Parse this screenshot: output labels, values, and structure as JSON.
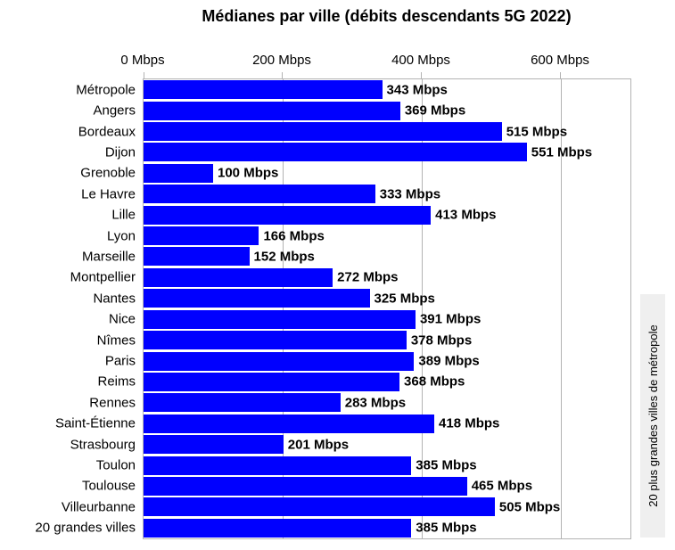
{
  "chart_data": {
    "type": "bar",
    "orientation": "horizontal",
    "title": "Médianes par ville (débits descendants 5G 2022)",
    "categories": [
      "Métropole",
      "Angers",
      "Bordeaux",
      "Dijon",
      "Grenoble",
      "Le Havre",
      "Lille",
      "Lyon",
      "Marseille",
      "Montpellier",
      "Nantes",
      "Nice",
      "Nîmes",
      "Paris",
      "Reims",
      "Rennes",
      "Saint-Étienne",
      "Strasbourg",
      "Toulon",
      "Toulouse",
      "Villeurbanne",
      "20 grandes villes"
    ],
    "values": [
      343,
      369,
      515,
      551,
      100,
      333,
      413,
      166,
      152,
      272,
      325,
      391,
      378,
      389,
      368,
      283,
      418,
      201,
      385,
      465,
      505,
      385
    ],
    "value_labels": [
      "343 Mbps",
      "369 Mbps",
      "515 Mbps",
      "551 Mbps",
      "100 Mbps",
      "333 Mbps",
      "413 Mbps",
      "166 Mbps",
      "152 Mbps",
      "272 Mbps",
      "325 Mbps",
      "391 Mbps",
      "378 Mbps",
      "389 Mbps",
      "368 Mbps",
      "283 Mbps",
      "418 Mbps",
      "201 Mbps",
      "385 Mbps",
      "465 Mbps",
      "505 Mbps",
      "385 Mbps"
    ],
    "x_ticks": [
      {
        "value": 0,
        "label": "0 Mbps"
      },
      {
        "value": 200,
        "label": "200 Mbps"
      },
      {
        "value": 400,
        "label": "400 Mbps"
      },
      {
        "value": 600,
        "label": "600 Mbps"
      }
    ],
    "xlabel": "",
    "ylabel": "",
    "xlim": [
      0,
      700
    ],
    "grid": true,
    "legend_position": "none",
    "right_axis_label": "20 plus grandes villes de métropole",
    "bar_color": "#0000ff",
    "grid_color": "#b3b3b3",
    "strip_bg": "#efefef"
  }
}
